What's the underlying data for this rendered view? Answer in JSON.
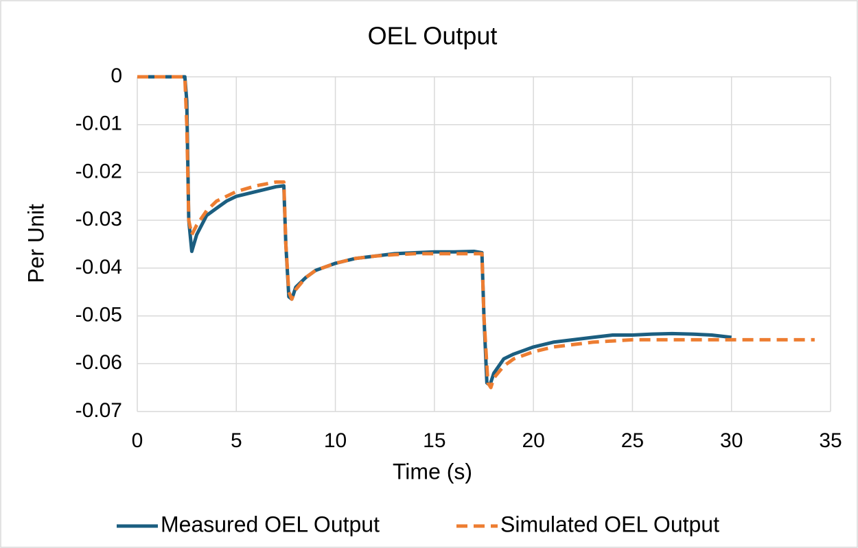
{
  "chart_data": {
    "type": "line",
    "title": "OEL Output",
    "x_label": "Time (s)",
    "y_label": "Per Unit",
    "xlim": [
      0,
      35
    ],
    "xticks": [
      0,
      5,
      10,
      15,
      20,
      25,
      30,
      35
    ],
    "ylim": [
      -0.07,
      0
    ],
    "yticks": [
      0,
      -0.01,
      -0.02,
      -0.03,
      -0.04,
      -0.05,
      -0.06,
      -0.07
    ],
    "grid": true,
    "legend": "bottom",
    "series": [
      {
        "name": "Measured OEL Output",
        "color": "#1b5e80",
        "dash": "solid",
        "x": [
          0,
          2.4,
          2.5,
          2.6,
          2.75,
          3,
          3.5,
          4,
          4.5,
          5,
          5.5,
          6,
          6.5,
          7,
          7.4,
          7.5,
          7.65,
          7.8,
          8,
          8.5,
          9,
          10,
          11,
          12,
          13,
          14,
          15,
          16,
          17,
          17.4,
          17.5,
          17.65,
          17.8,
          18,
          18.5,
          19,
          20,
          21,
          22,
          23,
          24,
          25,
          26,
          27,
          28,
          29,
          30
        ],
        "values": [
          0,
          0,
          -0.005,
          -0.03,
          -0.0365,
          -0.033,
          -0.029,
          -0.0275,
          -0.026,
          -0.025,
          -0.0245,
          -0.024,
          -0.0235,
          -0.023,
          -0.0228,
          -0.035,
          -0.046,
          -0.0465,
          -0.044,
          -0.042,
          -0.0405,
          -0.039,
          -0.038,
          -0.0375,
          -0.037,
          -0.0368,
          -0.0366,
          -0.0366,
          -0.0365,
          -0.0368,
          -0.05,
          -0.064,
          -0.0645,
          -0.062,
          -0.059,
          -0.058,
          -0.0565,
          -0.0555,
          -0.055,
          -0.0545,
          -0.054,
          -0.054,
          -0.0538,
          -0.0537,
          -0.0538,
          -0.054,
          -0.0545
        ]
      },
      {
        "name": "Simulated OEL Output",
        "color": "#ed7d31",
        "dash": "dashed",
        "x": [
          0,
          2.4,
          2.5,
          2.6,
          2.75,
          3,
          3.5,
          4,
          5,
          6,
          7,
          7.4,
          7.5,
          7.65,
          7.8,
          8,
          8.5,
          9,
          10,
          11,
          12,
          13,
          14,
          15,
          16,
          17,
          17.4,
          17.5,
          17.7,
          17.85,
          18,
          18.5,
          19,
          20,
          21,
          22,
          23,
          25,
          27,
          30,
          34.2
        ],
        "values": [
          0,
          0,
          -0.01,
          -0.03,
          -0.033,
          -0.031,
          -0.028,
          -0.026,
          -0.024,
          -0.0228,
          -0.022,
          -0.022,
          -0.035,
          -0.045,
          -0.0465,
          -0.0445,
          -0.042,
          -0.0405,
          -0.039,
          -0.038,
          -0.0375,
          -0.0372,
          -0.037,
          -0.037,
          -0.037,
          -0.037,
          -0.037,
          -0.05,
          -0.064,
          -0.065,
          -0.063,
          -0.0605,
          -0.059,
          -0.0575,
          -0.0565,
          -0.056,
          -0.0555,
          -0.055,
          -0.055,
          -0.055,
          -0.055
        ]
      }
    ]
  }
}
